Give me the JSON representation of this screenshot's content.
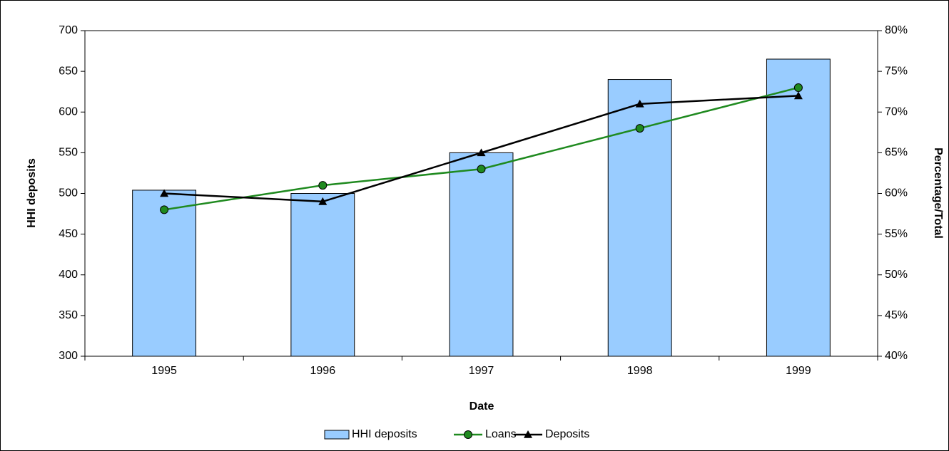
{
  "chart_data": {
    "type": "bar_line",
    "categories": [
      "1995",
      "1996",
      "1997",
      "1998",
      "1999"
    ],
    "x_label": "Date",
    "y_label": "HHI deposits",
    "y2_label": "Percentage/Total",
    "ylim": [
      300,
      700
    ],
    "yticks": [
      300,
      350,
      400,
      450,
      500,
      550,
      600,
      650,
      700
    ],
    "y2lim": [
      40,
      80
    ],
    "y2ticks": [
      {
        "value": 40,
        "label": "40%"
      },
      {
        "value": 45,
        "label": "45%"
      },
      {
        "value": 50,
        "label": "50%"
      },
      {
        "value": 55,
        "label": "55%"
      },
      {
        "value": 60,
        "label": "60%"
      },
      {
        "value": 65,
        "label": "65%"
      },
      {
        "value": 70,
        "label": "70%"
      },
      {
        "value": 75,
        "label": "75%"
      },
      {
        "value": 80,
        "label": "80%"
      }
    ],
    "legend": "bottom",
    "series": [
      {
        "name": "HHI deposits",
        "type": "bar",
        "color": "#99ccff",
        "values": [
          504,
          500,
          550,
          640,
          665
        ]
      },
      {
        "name": "Loans",
        "type": "line",
        "marker": "circle",
        "axis": "y2",
        "color": "#1f8a1f",
        "values": [
          58,
          61,
          63,
          68,
          73
        ]
      },
      {
        "name": "Deposits",
        "type": "line",
        "marker": "triangle",
        "axis": "y2",
        "color": "#000000",
        "values": [
          60,
          59,
          65,
          71,
          72
        ]
      }
    ]
  }
}
